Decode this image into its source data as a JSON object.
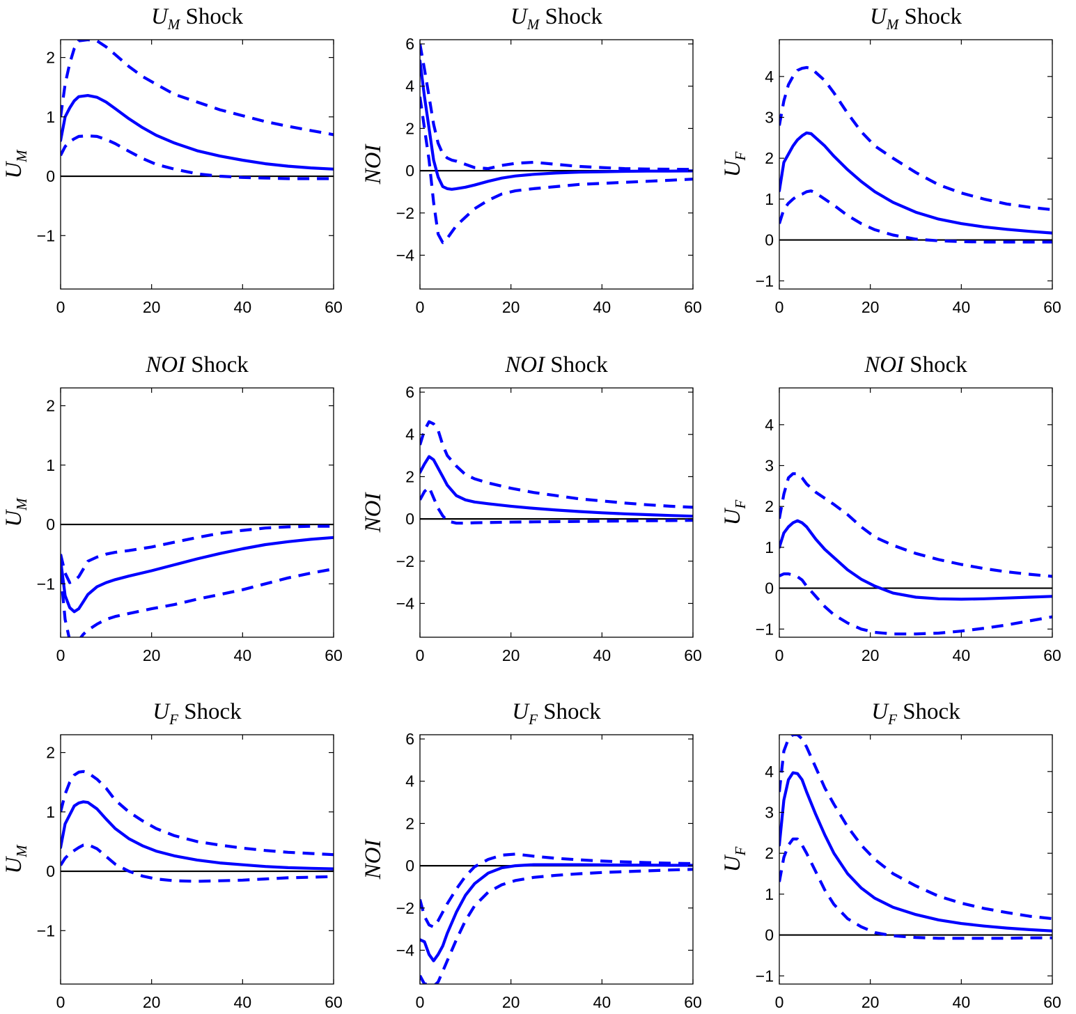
{
  "figure": {
    "shock_suffix": "Shock"
  },
  "x_ticks": [
    0,
    20,
    40,
    60
  ],
  "chart_data": [
    {
      "type": "line",
      "row": 0,
      "col": 0,
      "title": {
        "var": "U",
        "sub": "M"
      },
      "ylabel": {
        "var": "U",
        "sub": "M"
      },
      "xlim": [
        0,
        60
      ],
      "ylim": [
        -1.9,
        2.3
      ],
      "yticks": [
        -1,
        0,
        1,
        2
      ],
      "x": [
        0,
        1,
        2,
        3,
        4,
        6,
        8,
        10,
        12,
        15,
        18,
        21,
        25,
        30,
        35,
        40,
        45,
        50,
        55,
        60
      ],
      "series": [
        {
          "style": "solid",
          "values": [
            0.6,
            1.0,
            1.15,
            1.27,
            1.34,
            1.36,
            1.33,
            1.25,
            1.14,
            0.97,
            0.82,
            0.69,
            0.56,
            0.43,
            0.34,
            0.27,
            0.21,
            0.17,
            0.14,
            0.12
          ]
        },
        {
          "style": "dash",
          "values": [
            1.0,
            1.55,
            1.9,
            2.15,
            2.28,
            2.3,
            2.28,
            2.18,
            2.05,
            1.85,
            1.68,
            1.55,
            1.38,
            1.25,
            1.12,
            1.02,
            0.92,
            0.84,
            0.77,
            0.7
          ]
        },
        {
          "style": "dash",
          "values": [
            0.35,
            0.5,
            0.58,
            0.63,
            0.67,
            0.68,
            0.67,
            0.62,
            0.55,
            0.42,
            0.3,
            0.2,
            0.12,
            0.04,
            0.0,
            -0.02,
            -0.03,
            -0.04,
            -0.04,
            -0.04
          ]
        }
      ]
    },
    {
      "type": "line",
      "row": 0,
      "col": 1,
      "title": {
        "var": "U",
        "sub": "M"
      },
      "ylabel": {
        "var": "NOI",
        "sub": ""
      },
      "xlim": [
        0,
        60
      ],
      "ylim": [
        -5.6,
        6.2
      ],
      "yticks": [
        -4,
        -2,
        0,
        2,
        4,
        6
      ],
      "x": [
        0,
        1,
        2,
        3,
        4,
        5,
        6,
        7,
        8,
        10,
        12,
        15,
        18,
        21,
        25,
        30,
        35,
        40,
        45,
        50,
        55,
        60
      ],
      "series": [
        {
          "style": "solid",
          "values": [
            5.2,
            3.5,
            2.0,
            0.5,
            -0.3,
            -0.75,
            -0.85,
            -0.88,
            -0.85,
            -0.78,
            -0.68,
            -0.5,
            -0.35,
            -0.25,
            -0.17,
            -0.11,
            -0.07,
            -0.05,
            -0.03,
            -0.02,
            -0.02,
            -0.01
          ]
        },
        {
          "style": "dash",
          "values": [
            6.0,
            4.8,
            3.5,
            2.2,
            1.3,
            0.8,
            0.6,
            0.5,
            0.45,
            0.3,
            0.15,
            0.1,
            0.25,
            0.35,
            0.4,
            0.3,
            0.2,
            0.15,
            0.1,
            0.08,
            0.07,
            0.06
          ]
        },
        {
          "style": "dash",
          "values": [
            3.5,
            2.0,
            0.5,
            -1.5,
            -3.0,
            -3.4,
            -3.2,
            -2.9,
            -2.6,
            -2.2,
            -1.8,
            -1.4,
            -1.1,
            -0.95,
            -0.85,
            -0.75,
            -0.65,
            -0.6,
            -0.55,
            -0.5,
            -0.45,
            -0.4
          ]
        }
      ]
    },
    {
      "type": "line",
      "row": 0,
      "col": 2,
      "title": {
        "var": "U",
        "sub": "M"
      },
      "ylabel": {
        "var": "U",
        "sub": "F"
      },
      "xlim": [
        0,
        60
      ],
      "ylim": [
        -1.2,
        4.9
      ],
      "yticks": [
        -1,
        0,
        1,
        2,
        3,
        4
      ],
      "x": [
        0,
        1,
        2,
        3,
        4,
        5,
        6,
        7,
        8,
        10,
        12,
        15,
        18,
        21,
        25,
        30,
        35,
        40,
        45,
        50,
        55,
        60
      ],
      "series": [
        {
          "style": "solid",
          "values": [
            1.2,
            1.9,
            2.1,
            2.3,
            2.45,
            2.55,
            2.62,
            2.6,
            2.5,
            2.3,
            2.05,
            1.72,
            1.43,
            1.18,
            0.92,
            0.68,
            0.51,
            0.4,
            0.32,
            0.26,
            0.21,
            0.17
          ]
        },
        {
          "style": "dash",
          "values": [
            2.8,
            3.4,
            3.8,
            4.0,
            4.15,
            4.2,
            4.22,
            4.2,
            4.1,
            3.9,
            3.6,
            3.1,
            2.65,
            2.3,
            2.0,
            1.65,
            1.35,
            1.15,
            1.0,
            0.88,
            0.8,
            0.74
          ]
        },
        {
          "style": "dash",
          "values": [
            0.4,
            0.75,
            0.9,
            1.0,
            1.08,
            1.12,
            1.18,
            1.2,
            1.15,
            1.0,
            0.85,
            0.6,
            0.4,
            0.25,
            0.12,
            0.02,
            -0.02,
            -0.04,
            -0.05,
            -0.05,
            -0.05,
            -0.05
          ]
        }
      ]
    },
    {
      "type": "line",
      "row": 1,
      "col": 0,
      "title": {
        "var": "NOI",
        "sub": ""
      },
      "ylabel": {
        "var": "U",
        "sub": "M"
      },
      "xlim": [
        0,
        60
      ],
      "ylim": [
        -1.9,
        2.3
      ],
      "yticks": [
        -1,
        0,
        1,
        2
      ],
      "x": [
        0,
        1,
        2,
        3,
        4,
        5,
        6,
        8,
        10,
        12,
        15,
        20,
        25,
        30,
        35,
        40,
        45,
        50,
        55,
        60
      ],
      "series": [
        {
          "style": "solid",
          "values": [
            -0.6,
            -1.2,
            -1.4,
            -1.47,
            -1.42,
            -1.3,
            -1.18,
            -1.05,
            -0.98,
            -0.93,
            -0.87,
            -0.78,
            -0.68,
            -0.58,
            -0.49,
            -0.41,
            -0.34,
            -0.29,
            -0.25,
            -0.22
          ]
        },
        {
          "style": "dash",
          "values": [
            -0.5,
            -0.82,
            -0.98,
            -0.95,
            -0.88,
            -0.75,
            -0.62,
            -0.55,
            -0.5,
            -0.47,
            -0.44,
            -0.38,
            -0.3,
            -0.22,
            -0.15,
            -0.1,
            -0.06,
            -0.04,
            -0.03,
            -0.03
          ]
        },
        {
          "style": "dash",
          "values": [
            -0.8,
            -1.6,
            -1.95,
            -2.0,
            -1.95,
            -1.85,
            -1.78,
            -1.68,
            -1.6,
            -1.55,
            -1.5,
            -1.42,
            -1.35,
            -1.26,
            -1.18,
            -1.1,
            -1.0,
            -0.9,
            -0.82,
            -0.75
          ]
        }
      ]
    },
    {
      "type": "line",
      "row": 1,
      "col": 1,
      "title": {
        "var": "NOI",
        "sub": ""
      },
      "ylabel": {
        "var": "NOI",
        "sub": ""
      },
      "xlim": [
        0,
        60
      ],
      "ylim": [
        -5.6,
        6.2
      ],
      "yticks": [
        -4,
        -2,
        0,
        2,
        4,
        6
      ],
      "x": [
        0,
        1,
        2,
        3,
        4,
        5,
        6,
        8,
        10,
        12,
        15,
        20,
        25,
        30,
        35,
        40,
        45,
        50,
        55,
        60
      ],
      "series": [
        {
          "style": "solid",
          "values": [
            2.2,
            2.6,
            2.95,
            2.8,
            2.4,
            2.0,
            1.6,
            1.1,
            0.9,
            0.8,
            0.72,
            0.6,
            0.5,
            0.42,
            0.35,
            0.29,
            0.24,
            0.2,
            0.16,
            0.13
          ]
        },
        {
          "style": "dash",
          "values": [
            3.5,
            4.2,
            4.6,
            4.5,
            4.2,
            3.5,
            3.0,
            2.5,
            2.1,
            1.9,
            1.7,
            1.45,
            1.25,
            1.1,
            0.95,
            0.85,
            0.75,
            0.67,
            0.6,
            0.55
          ]
        },
        {
          "style": "dash",
          "values": [
            0.9,
            1.3,
            1.5,
            1.0,
            0.5,
            0.15,
            -0.1,
            -0.2,
            -0.2,
            -0.18,
            -0.17,
            -0.15,
            -0.14,
            -0.13,
            -0.12,
            -0.11,
            -0.1,
            -0.09,
            -0.08,
            -0.07
          ]
        }
      ]
    },
    {
      "type": "line",
      "row": 1,
      "col": 2,
      "title": {
        "var": "NOI",
        "sub": ""
      },
      "ylabel": {
        "var": "U",
        "sub": "F"
      },
      "xlim": [
        0,
        60
      ],
      "ylim": [
        -1.2,
        4.9
      ],
      "yticks": [
        -1,
        0,
        1,
        2,
        3,
        4
      ],
      "x": [
        0,
        1,
        2,
        3,
        4,
        5,
        6,
        8,
        10,
        12,
        15,
        18,
        21,
        25,
        30,
        35,
        40,
        45,
        50,
        55,
        60
      ],
      "series": [
        {
          "style": "solid",
          "values": [
            1.0,
            1.35,
            1.5,
            1.6,
            1.65,
            1.6,
            1.5,
            1.2,
            0.95,
            0.75,
            0.45,
            0.22,
            0.05,
            -0.12,
            -0.22,
            -0.26,
            -0.27,
            -0.26,
            -0.24,
            -0.22,
            -0.2
          ]
        },
        {
          "style": "dash",
          "values": [
            1.7,
            2.3,
            2.7,
            2.8,
            2.8,
            2.7,
            2.55,
            2.35,
            2.2,
            2.05,
            1.8,
            1.5,
            1.25,
            1.05,
            0.85,
            0.7,
            0.58,
            0.48,
            0.4,
            0.34,
            0.29
          ]
        },
        {
          "style": "dash",
          "values": [
            0.3,
            0.35,
            0.35,
            0.32,
            0.28,
            0.2,
            0.05,
            -0.2,
            -0.45,
            -0.65,
            -0.85,
            -1.0,
            -1.08,
            -1.12,
            -1.12,
            -1.1,
            -1.05,
            -0.98,
            -0.9,
            -0.8,
            -0.7
          ]
        }
      ]
    },
    {
      "type": "line",
      "row": 2,
      "col": 0,
      "title": {
        "var": "U",
        "sub": "F"
      },
      "ylabel": {
        "var": "U",
        "sub": "M"
      },
      "xlim": [
        0,
        60
      ],
      "ylim": [
        -1.9,
        2.3
      ],
      "yticks": [
        -1,
        0,
        1,
        2
      ],
      "x": [
        0,
        1,
        2,
        3,
        4,
        5,
        6,
        8,
        10,
        12,
        15,
        18,
        21,
        25,
        30,
        35,
        40,
        45,
        50,
        55,
        60
      ],
      "series": [
        {
          "style": "solid",
          "values": [
            0.4,
            0.8,
            0.95,
            1.1,
            1.15,
            1.17,
            1.16,
            1.05,
            0.88,
            0.72,
            0.55,
            0.43,
            0.34,
            0.26,
            0.19,
            0.14,
            0.11,
            0.08,
            0.06,
            0.05,
            0.04
          ]
        },
        {
          "style": "dash",
          "values": [
            1.0,
            1.3,
            1.5,
            1.62,
            1.67,
            1.68,
            1.66,
            1.55,
            1.4,
            1.2,
            1.0,
            0.85,
            0.72,
            0.6,
            0.5,
            0.44,
            0.39,
            0.35,
            0.32,
            0.3,
            0.28
          ]
        },
        {
          "style": "dash",
          "values": [
            0.1,
            0.22,
            0.3,
            0.35,
            0.4,
            0.44,
            0.45,
            0.38,
            0.25,
            0.12,
            0.0,
            -0.08,
            -0.13,
            -0.16,
            -0.17,
            -0.16,
            -0.15,
            -0.13,
            -0.11,
            -0.1,
            -0.09
          ]
        }
      ]
    },
    {
      "type": "line",
      "row": 2,
      "col": 1,
      "title": {
        "var": "U",
        "sub": "F"
      },
      "ylabel": {
        "var": "NOI",
        "sub": ""
      },
      "xlim": [
        0,
        60
      ],
      "ylim": [
        -5.6,
        6.2
      ],
      "yticks": [
        -4,
        -2,
        0,
        2,
        4,
        6
      ],
      "x": [
        0,
        1,
        2,
        3,
        4,
        5,
        6,
        8,
        10,
        12,
        15,
        18,
        21,
        25,
        30,
        35,
        40,
        45,
        50,
        55,
        60
      ],
      "series": [
        {
          "style": "solid",
          "values": [
            -3.5,
            -3.6,
            -4.2,
            -4.5,
            -4.2,
            -3.8,
            -3.2,
            -2.2,
            -1.4,
            -0.85,
            -0.35,
            -0.1,
            0.0,
            0.05,
            0.05,
            0.05,
            0.04,
            0.03,
            0.03,
            0.02,
            0.02
          ]
        },
        {
          "style": "dash",
          "values": [
            -1.6,
            -2.4,
            -2.8,
            -2.9,
            -2.6,
            -2.2,
            -1.8,
            -1.1,
            -0.5,
            -0.05,
            0.3,
            0.5,
            0.55,
            0.45,
            0.35,
            0.28,
            0.22,
            0.18,
            0.15,
            0.12,
            0.1
          ]
        },
        {
          "style": "dash",
          "values": [
            -5.2,
            -5.6,
            -5.6,
            -5.7,
            -5.5,
            -5.0,
            -4.5,
            -3.5,
            -2.6,
            -1.9,
            -1.25,
            -0.9,
            -0.7,
            -0.55,
            -0.45,
            -0.38,
            -0.32,
            -0.28,
            -0.24,
            -0.2,
            -0.17
          ]
        }
      ]
    },
    {
      "type": "line",
      "row": 2,
      "col": 2,
      "title": {
        "var": "U",
        "sub": "F"
      },
      "ylabel": {
        "var": "U",
        "sub": "F"
      },
      "xlim": [
        0,
        60
      ],
      "ylim": [
        -1.2,
        4.9
      ],
      "yticks": [
        -1,
        0,
        1,
        2,
        3,
        4
      ],
      "x": [
        0,
        1,
        2,
        3,
        4,
        5,
        6,
        8,
        10,
        12,
        15,
        18,
        21,
        25,
        30,
        35,
        40,
        45,
        50,
        55,
        60
      ],
      "series": [
        {
          "style": "solid",
          "values": [
            2.2,
            3.3,
            3.8,
            3.97,
            3.95,
            3.8,
            3.5,
            2.95,
            2.45,
            2.0,
            1.5,
            1.15,
            0.9,
            0.68,
            0.5,
            0.37,
            0.28,
            0.22,
            0.17,
            0.13,
            0.1
          ]
        },
        {
          "style": "dash",
          "values": [
            3.5,
            4.5,
            4.8,
            4.9,
            4.9,
            4.8,
            4.6,
            4.1,
            3.6,
            3.2,
            2.65,
            2.2,
            1.85,
            1.5,
            1.2,
            0.95,
            0.78,
            0.65,
            0.55,
            0.46,
            0.4
          ]
        },
        {
          "style": "dash",
          "values": [
            1.3,
            1.9,
            2.2,
            2.35,
            2.35,
            2.2,
            2.0,
            1.55,
            1.1,
            0.75,
            0.4,
            0.2,
            0.06,
            -0.02,
            -0.06,
            -0.08,
            -0.08,
            -0.08,
            -0.08,
            -0.07,
            -0.07
          ]
        }
      ]
    }
  ]
}
